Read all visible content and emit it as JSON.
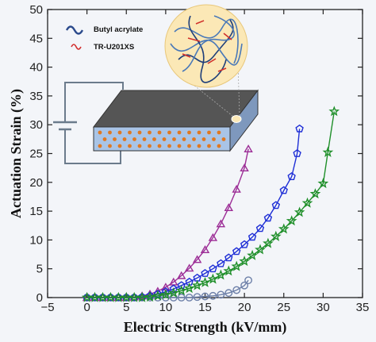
{
  "chart_data": {
    "type": "scatter",
    "xlabel": "Electric Strength (kV/mm)",
    "ylabel": "Actuation Strain (%)",
    "xlim": [
      -5,
      35
    ],
    "ylim": [
      0,
      50
    ],
    "xticks": [
      "−5",
      "0",
      "5",
      "10",
      "15",
      "20",
      "25",
      "30",
      "35"
    ],
    "yticks": [
      "0",
      "5",
      "10",
      "15",
      "20",
      "25",
      "30",
      "35",
      "40",
      "45",
      "50"
    ],
    "grid": false,
    "legend_position": "top-left",
    "legend": [
      {
        "label": "Butyl acrylate",
        "color": "#2b4a8c",
        "icon": "wavy-line-icon"
      },
      {
        "label": "TR-U201XS",
        "color": "#d22f2f",
        "icon": "wavy-line-icon"
      }
    ],
    "inset": {
      "description_icons": [
        "battery-circuit-icon",
        "film-block-icon",
        "polymer-network-magnifier-icon"
      ],
      "colors": {
        "top_face": "#555555",
        "front_face": "#a9c4e6",
        "particles": "#e07820",
        "circle": "#fbe8b6"
      }
    },
    "series": [
      {
        "marker": "circle",
        "color": "#6c7fa8",
        "x": [
          0,
          1,
          2,
          3,
          4,
          5,
          6,
          7,
          8,
          9,
          10,
          11,
          12,
          13,
          14,
          15,
          16,
          17,
          18,
          19,
          20,
          20.5
        ],
        "y": [
          0,
          0,
          0,
          0,
          0,
          0,
          0,
          0,
          0,
          0,
          0,
          0,
          0,
          0,
          0.1,
          0.2,
          0.3,
          0.5,
          0.8,
          1.3,
          2.1,
          3.0
        ]
      },
      {
        "marker": "triangle",
        "color": "#9c2d96",
        "x": [
          0,
          1,
          2,
          3,
          4,
          5,
          6,
          7,
          8,
          9,
          10,
          11,
          12,
          13,
          14,
          15,
          16,
          17,
          18,
          19,
          20,
          20.5
        ],
        "y": [
          0,
          0,
          0,
          0,
          0,
          0,
          0.1,
          0.3,
          0.6,
          1.1,
          1.8,
          2.7,
          3.8,
          5.1,
          6.6,
          8.3,
          10.4,
          12.8,
          15.6,
          18.8,
          22.5,
          25.8
        ]
      },
      {
        "marker": "pentagon",
        "color": "#1f2fd6",
        "x": [
          0,
          1,
          2,
          3,
          4,
          5,
          6,
          7,
          8,
          9,
          10,
          11,
          12,
          13,
          14,
          15,
          16,
          17,
          18,
          19,
          20,
          21,
          22,
          23,
          24,
          25,
          26,
          26.7,
          27
        ],
        "y": [
          0,
          0,
          0,
          0,
          0,
          0,
          0,
          0.1,
          0.3,
          0.6,
          1.0,
          1.5,
          2.1,
          2.7,
          3.4,
          4.2,
          5.0,
          5.9,
          6.9,
          8.0,
          9.2,
          10.5,
          12.0,
          13.8,
          16.0,
          18.6,
          21.0,
          25.0,
          29.3
        ]
      },
      {
        "marker": "star",
        "color": "#1f8f2a",
        "x": [
          0,
          1,
          2,
          3,
          4,
          5,
          6,
          7,
          8,
          9,
          10,
          11,
          12,
          13,
          14,
          15,
          16,
          17,
          18,
          19,
          20,
          21,
          22,
          23,
          24,
          25,
          26,
          27,
          28,
          29,
          30,
          30.6,
          31.4
        ],
        "y": [
          0,
          0,
          0,
          0,
          0,
          0,
          0,
          0,
          0.1,
          0.3,
          0.5,
          0.8,
          1.2,
          1.6,
          2.1,
          2.6,
          3.2,
          3.9,
          4.6,
          5.4,
          6.3,
          7.3,
          8.3,
          9.4,
          10.6,
          11.9,
          13.3,
          14.8,
          16.4,
          18.0,
          19.8,
          25.2,
          32.3
        ]
      }
    ]
  }
}
